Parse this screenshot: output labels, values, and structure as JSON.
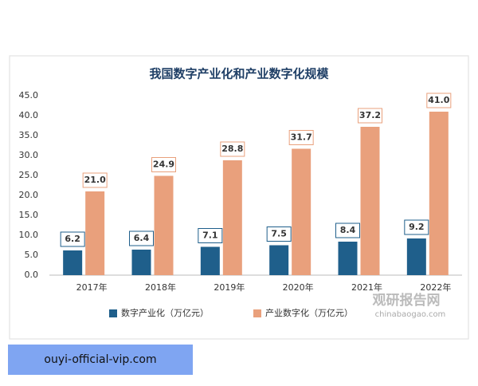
{
  "chart_data": {
    "type": "bar",
    "title": "我国数字产业化和产业数字化规模",
    "categories": [
      "2017年",
      "2018年",
      "2019年",
      "2020年",
      "2021年",
      "2022年"
    ],
    "series": [
      {
        "name": "数字产业化（万亿元）",
        "color": "#1f5f8b",
        "values": [
          6.2,
          6.4,
          7.1,
          7.5,
          8.4,
          9.2
        ],
        "value_labels": [
          "6.2",
          "6.4",
          "7.1",
          "7.5",
          "8.4",
          "9.2"
        ]
      },
      {
        "name": "产业数字化（万亿元）",
        "color": "#e9a07c",
        "values": [
          21.0,
          24.9,
          28.8,
          31.7,
          37.2,
          41.0
        ],
        "value_labels": [
          "21.0",
          "24.9",
          "28.8",
          "31.7",
          "37.2",
          "41.0"
        ]
      }
    ],
    "ylim": [
      0,
      45
    ],
    "yticks": [
      {
        "value": 0,
        "label": "0.0"
      },
      {
        "value": 5,
        "label": "5.0"
      },
      {
        "value": 10,
        "label": "10.0"
      },
      {
        "value": 15,
        "label": "15.0"
      },
      {
        "value": 20,
        "label": "20.0"
      },
      {
        "value": 25,
        "label": "25.0"
      },
      {
        "value": 30,
        "label": "30.0"
      },
      {
        "value": 35,
        "label": "35.0"
      },
      {
        "value": 40,
        "label": "40.0"
      },
      {
        "value": 45,
        "label": "45.0"
      }
    ],
    "grid": false
  },
  "watermark": {
    "name": "观研报告网",
    "url": "chinabaogao.com"
  },
  "banner": "ouyi-official-vip.com"
}
